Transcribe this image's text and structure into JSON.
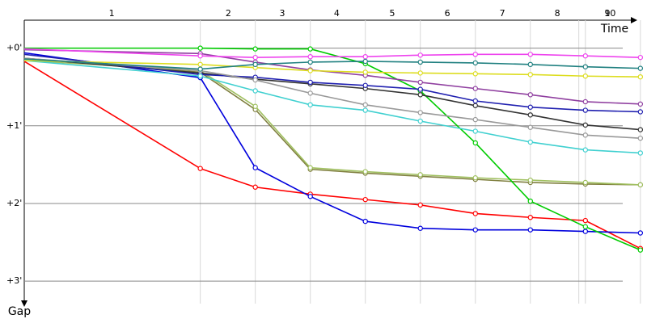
{
  "chart_data": {
    "type": "line",
    "x_label": "Time",
    "y_label": "Gap",
    "x": [
      0,
      3.2,
      4.2,
      5.2,
      6.2,
      7.2,
      8.2,
      9.2,
      10.2,
      11.2
    ],
    "xlim": [
      0,
      11.32
    ],
    "xticks": [
      {
        "value": 1.59,
        "label": "1"
      },
      {
        "value": 3.71,
        "label": "2"
      },
      {
        "value": 4.69,
        "label": "3"
      },
      {
        "value": 5.68,
        "label": "4"
      },
      {
        "value": 6.69,
        "label": "5"
      },
      {
        "value": 7.69,
        "label": "6"
      },
      {
        "value": 8.69,
        "label": "7"
      },
      {
        "value": 9.69,
        "label": "8"
      },
      {
        "value": 10.6,
        "label": "9"
      },
      {
        "value": 10.65,
        "label": "10"
      }
    ],
    "xgrid": [
      3.2,
      4.2,
      5.2,
      6.2,
      7.2,
      8.2,
      9.2,
      10.08,
      10.2,
      11.2
    ],
    "ylim": [
      -0.36,
      3.29
    ],
    "yticks": [
      {
        "value": 0,
        "label": "+0'"
      },
      {
        "value": 1,
        "label": "+1'"
      },
      {
        "value": 2,
        "label": "+2'"
      },
      {
        "value": 3,
        "label": "+3'"
      }
    ],
    "grid": true,
    "series": [
      {
        "color": "#ff0000",
        "values": [
          0.17,
          1.55,
          1.79,
          1.88,
          1.95,
          2.02,
          2.13,
          2.18,
          2.22,
          2.58
        ]
      },
      {
        "color": "#0000dd",
        "values": [
          0.06,
          0.38,
          1.54,
          1.91,
          2.23,
          2.32,
          2.34,
          2.34,
          2.36,
          2.38
        ]
      },
      {
        "color": "#808040",
        "values": [
          0.13,
          0.31,
          0.79,
          1.56,
          1.61,
          1.65,
          1.69,
          1.73,
          1.75,
          1.76
        ]
      },
      {
        "color": "#a0c060",
        "values": [
          0.16,
          0.29,
          0.75,
          1.54,
          1.59,
          1.63,
          1.67,
          1.7,
          1.73,
          1.76
        ]
      },
      {
        "color": "#00cc00",
        "values": [
          0.0,
          0.0,
          0.01,
          0.01,
          0.2,
          0.55,
          1.22,
          1.97,
          2.3,
          2.6
        ]
      },
      {
        "color": "#333333",
        "values": [
          0.13,
          0.32,
          0.4,
          0.46,
          0.52,
          0.6,
          0.74,
          0.86,
          0.99,
          1.05
        ]
      },
      {
        "color": "#2020b0",
        "values": [
          0.08,
          0.34,
          0.375,
          0.44,
          0.48,
          0.53,
          0.68,
          0.76,
          0.8,
          0.82
        ]
      },
      {
        "color": "#40d0d0",
        "values": [
          0.16,
          0.36,
          0.55,
          0.73,
          0.8,
          0.94,
          1.07,
          1.21,
          1.31,
          1.35
        ]
      },
      {
        "color": "#999999",
        "values": [
          0.13,
          0.29,
          0.41,
          0.58,
          0.73,
          0.83,
          0.92,
          1.02,
          1.12,
          1.16
        ]
      },
      {
        "color": "#9040a0",
        "values": [
          0.02,
          0.07,
          0.18,
          0.28,
          0.35,
          0.44,
          0.52,
          0.6,
          0.69,
          0.72
        ]
      },
      {
        "color": "#dddd20",
        "values": [
          0.16,
          0.21,
          0.25,
          0.29,
          0.31,
          0.32,
          0.33,
          0.34,
          0.36,
          0.37
        ]
      },
      {
        "color": "#ee44ee",
        "values": [
          0.01,
          0.1,
          0.12,
          0.11,
          0.11,
          0.09,
          0.08,
          0.08,
          0.1,
          0.12
        ]
      },
      {
        "color": "#208080",
        "values": [
          0.14,
          0.27,
          0.21,
          0.18,
          0.17,
          0.18,
          0.19,
          0.21,
          0.24,
          0.26
        ]
      }
    ]
  }
}
